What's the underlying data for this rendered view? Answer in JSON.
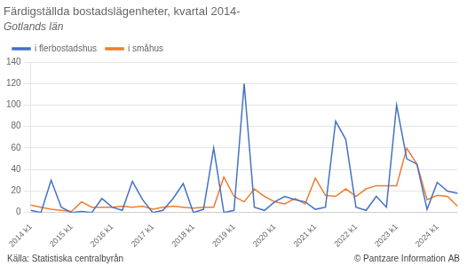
{
  "chart_data": {
    "type": "line",
    "title": "Färdigställda bostadslägenheter, kvartal 2014-",
    "subtitle": "Gotlands län",
    "annotations": [
      "Källa: Statistiska centralbyrån",
      "© Pantzare Information AB"
    ],
    "categories": [
      "2014 k1",
      null,
      null,
      null,
      "2015 k1",
      null,
      null,
      null,
      "2016 k1",
      null,
      null,
      null,
      "2017 k1",
      null,
      null,
      null,
      "2018 k1",
      null,
      null,
      null,
      "2019 k1",
      null,
      null,
      null,
      "2020 k1",
      null,
      null,
      null,
      "2021 k1",
      null,
      null,
      null,
      "2022 k1",
      null,
      null,
      null,
      "2023 k1",
      null,
      null,
      null,
      "2024 k1",
      null,
      null
    ],
    "series": [
      {
        "name": "i flerbostadshus",
        "color": "#4472c4",
        "values": [
          2,
          0,
          30,
          5,
          0,
          1,
          0,
          13,
          5,
          2,
          29,
          12,
          0,
          2,
          13,
          27,
          0,
          3,
          60,
          0,
          2,
          120,
          5,
          2,
          10,
          15,
          12,
          10,
          3,
          5,
          85,
          68,
          5,
          2,
          15,
          5,
          100,
          50,
          45,
          3,
          28,
          20,
          18
        ]
      },
      {
        "name": "i småhus",
        "color": "#ed7d31",
        "values": [
          7,
          5,
          3,
          2,
          1,
          10,
          5,
          5,
          5,
          6,
          5,
          6,
          3,
          5,
          6,
          5,
          4,
          5,
          5,
          33,
          15,
          10,
          22,
          15,
          10,
          8,
          13,
          8,
          32,
          16,
          15,
          22,
          15,
          22,
          25,
          25,
          25,
          60,
          45,
          12,
          16,
          15,
          6
        ]
      }
    ],
    "ylim": [
      0,
      140
    ],
    "yticks": [
      0,
      20,
      40,
      60,
      80,
      100,
      120,
      140
    ],
    "grid": "y",
    "legend": "upper left"
  }
}
